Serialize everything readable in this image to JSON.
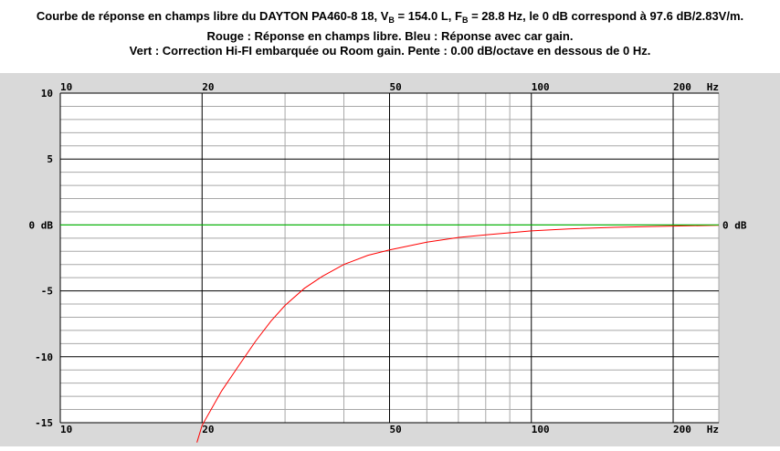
{
  "title": {
    "line1_a": "Courbe de réponse en champs libre du DAYTON PA460-8 18, V",
    "line1_sub1": "B",
    "line1_b": " = 154.0 L, F",
    "line1_sub2": "B",
    "line1_c": " = 28.8 Hz, le 0 dB correspond à 97.6 dB/2.83V/m.",
    "line2": "Rouge : Réponse en champs libre. Bleu : Réponse avec car gain.",
    "line3": "Vert : Correction Hi-FI embarquée ou Room gain. Pente : 0.00 dB/octave en dessous de 0 Hz."
  },
  "chart_data": {
    "type": "line",
    "x_scale": "log",
    "xlim": [
      10,
      250
    ],
    "ylim": [
      -15,
      10
    ],
    "grid": true,
    "x_tick_labels": [
      {
        "value": 10,
        "label": "10"
      },
      {
        "value": 20,
        "label": "20"
      },
      {
        "value": 50,
        "label": "50"
      },
      {
        "value": 100,
        "label": "100"
      },
      {
        "value": 200,
        "label": "200"
      }
    ],
    "x_unit_label": "Hz",
    "y_tick_labels": [
      {
        "value": 10,
        "label": "10"
      },
      {
        "value": 5,
        "label": "5"
      },
      {
        "value": 0,
        "label": "0 dB"
      },
      {
        "value": -5,
        "label": "-5"
      },
      {
        "value": -10,
        "label": "-10"
      },
      {
        "value": -15,
        "label": "-15"
      }
    ],
    "y_right_label": "0 dB",
    "series": [
      {
        "color": "#ff0000",
        "x": [
          19.5,
          20,
          22,
          24,
          26,
          28,
          30,
          33,
          36,
          40,
          45,
          50,
          60,
          70,
          80,
          100,
          120,
          150,
          200,
          250
        ],
        "y": [
          -16.5,
          -15.2,
          -12.6,
          -10.6,
          -8.8,
          -7.3,
          -6.1,
          -4.8,
          -3.9,
          -3.0,
          -2.3,
          -1.9,
          -1.3,
          -0.95,
          -0.75,
          -0.45,
          -0.3,
          -0.18,
          -0.08,
          -0.03
        ]
      },
      {
        "color": "#00cc00",
        "x": [
          10,
          250
        ],
        "y": [
          0,
          0
        ]
      }
    ]
  }
}
